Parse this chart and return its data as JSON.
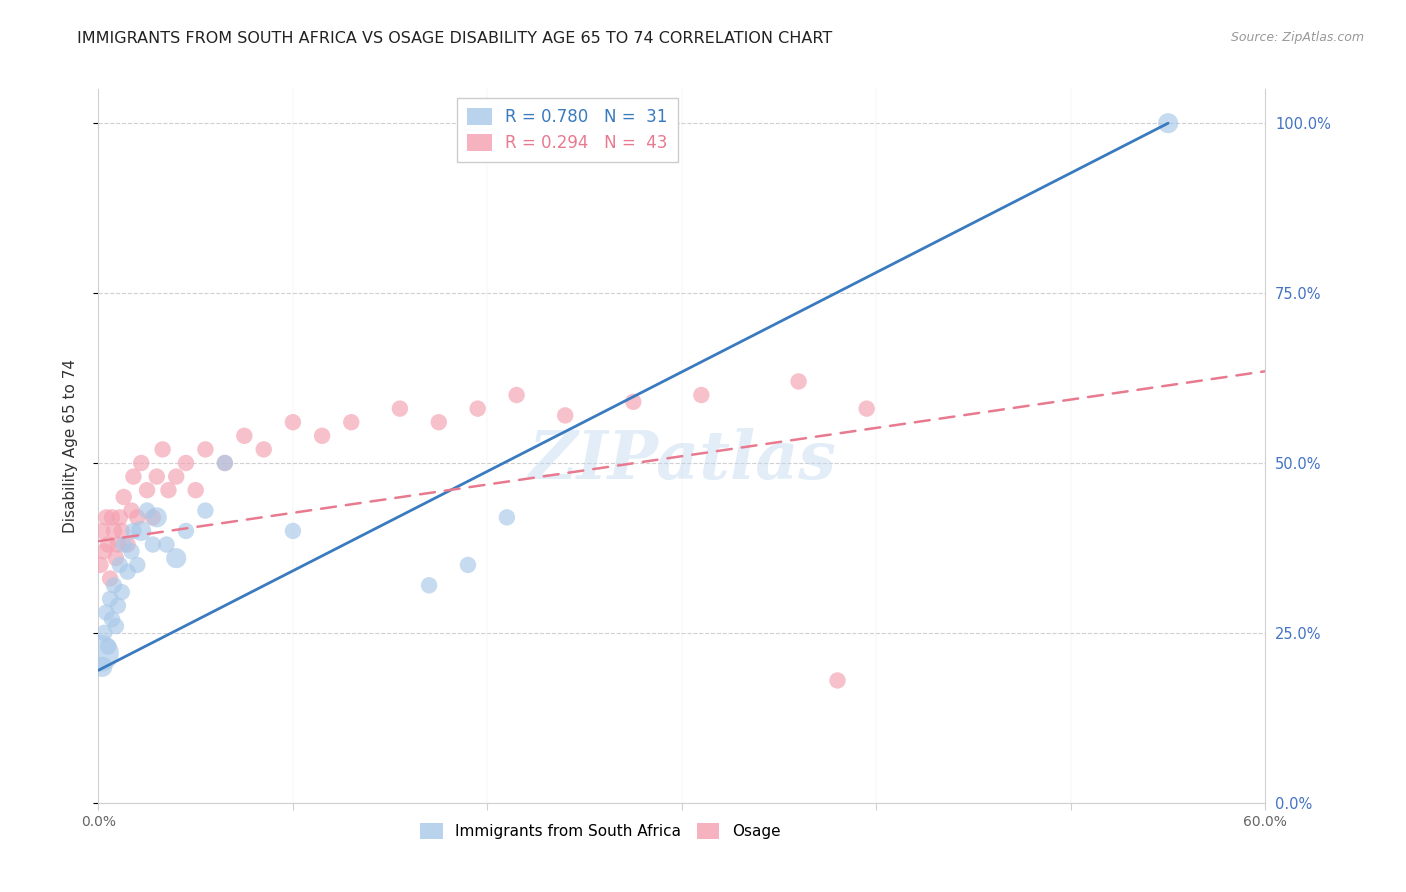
{
  "title": "IMMIGRANTS FROM SOUTH AFRICA VS OSAGE DISABILITY AGE 65 TO 74 CORRELATION CHART",
  "source": "Source: ZipAtlas.com",
  "ylabel": "Disability Age 65 to 74",
  "xlim": [
    0.0,
    0.6
  ],
  "ylim": [
    0.0,
    1.05
  ],
  "xticks": [
    0.0,
    0.1,
    0.2,
    0.3,
    0.4,
    0.5,
    0.6
  ],
  "xticklabels": [
    "0.0%",
    "",
    "",
    "",
    "",
    "",
    "60.0%"
  ],
  "yticks": [
    0.0,
    0.25,
    0.5,
    0.75,
    1.0
  ],
  "yticklabels_right": [
    "0.0%",
    "25.0%",
    "50.0%",
    "75.0%",
    "100.0%"
  ],
  "legend_blue_r": "R = 0.780",
  "legend_blue_n": "N =  31",
  "legend_pink_r": "R = 0.294",
  "legend_pink_n": "N =  43",
  "legend_label_blue": "Immigrants from South Africa",
  "legend_label_pink": "Osage",
  "blue_color": "#a8c8e8",
  "pink_color": "#f4a0b0",
  "blue_line_color": "#3a7abf",
  "pink_line_color": "#e87a90",
  "watermark": "ZIPatlas",
  "blue_scatter_x": [
    0.001,
    0.002,
    0.003,
    0.004,
    0.005,
    0.006,
    0.007,
    0.008,
    0.009,
    0.01,
    0.011,
    0.012,
    0.013,
    0.015,
    0.017,
    0.018,
    0.02,
    0.022,
    0.025,
    0.028,
    0.03,
    0.035,
    0.04,
    0.045,
    0.055,
    0.065,
    0.1,
    0.17,
    0.19,
    0.21,
    0.55
  ],
  "blue_scatter_y": [
    0.22,
    0.2,
    0.25,
    0.28,
    0.23,
    0.3,
    0.27,
    0.32,
    0.26,
    0.29,
    0.35,
    0.31,
    0.38,
    0.34,
    0.37,
    0.4,
    0.35,
    0.4,
    0.43,
    0.38,
    0.42,
    0.38,
    0.36,
    0.4,
    0.43,
    0.5,
    0.4,
    0.32,
    0.35,
    0.42,
    1.0
  ],
  "blue_scatter_size": [
    200,
    60,
    40,
    40,
    40,
    40,
    40,
    40,
    40,
    40,
    40,
    40,
    40,
    40,
    40,
    40,
    40,
    60,
    40,
    40,
    60,
    40,
    60,
    40,
    40,
    40,
    40,
    40,
    40,
    40,
    60
  ],
  "pink_scatter_x": [
    0.001,
    0.002,
    0.003,
    0.004,
    0.005,
    0.006,
    0.007,
    0.008,
    0.009,
    0.01,
    0.011,
    0.012,
    0.013,
    0.015,
    0.017,
    0.018,
    0.02,
    0.022,
    0.025,
    0.028,
    0.03,
    0.033,
    0.036,
    0.04,
    0.045,
    0.05,
    0.055,
    0.065,
    0.075,
    0.085,
    0.1,
    0.115,
    0.13,
    0.155,
    0.175,
    0.195,
    0.215,
    0.24,
    0.275,
    0.31,
    0.36,
    0.395,
    0.38
  ],
  "pink_scatter_y": [
    0.35,
    0.4,
    0.37,
    0.42,
    0.38,
    0.33,
    0.42,
    0.4,
    0.36,
    0.38,
    0.42,
    0.4,
    0.45,
    0.38,
    0.43,
    0.48,
    0.42,
    0.5,
    0.46,
    0.42,
    0.48,
    0.52,
    0.46,
    0.48,
    0.5,
    0.46,
    0.52,
    0.5,
    0.54,
    0.52,
    0.56,
    0.54,
    0.56,
    0.58,
    0.56,
    0.58,
    0.6,
    0.57,
    0.59,
    0.6,
    0.62,
    0.58,
    0.18
  ],
  "pink_scatter_size": [
    40,
    40,
    40,
    40,
    40,
    40,
    40,
    40,
    40,
    40,
    40,
    40,
    40,
    40,
    40,
    40,
    40,
    40,
    40,
    40,
    40,
    40,
    40,
    40,
    40,
    40,
    40,
    40,
    40,
    40,
    40,
    40,
    40,
    40,
    40,
    40,
    40,
    40,
    40,
    40,
    40,
    40,
    40
  ],
  "blue_line_x": [
    0.0,
    0.55
  ],
  "blue_line_y": [
    0.195,
    1.0
  ],
  "pink_line_x": [
    0.0,
    0.6
  ],
  "pink_line_y": [
    0.385,
    0.635
  ],
  "background_color": "#ffffff",
  "grid_color": "#d0d0d0",
  "right_axis_color": "#4472c4",
  "title_fontsize": 11.5,
  "source_fontsize": 9,
  "legend_fontsize": 12,
  "ylabel_fontsize": 11
}
